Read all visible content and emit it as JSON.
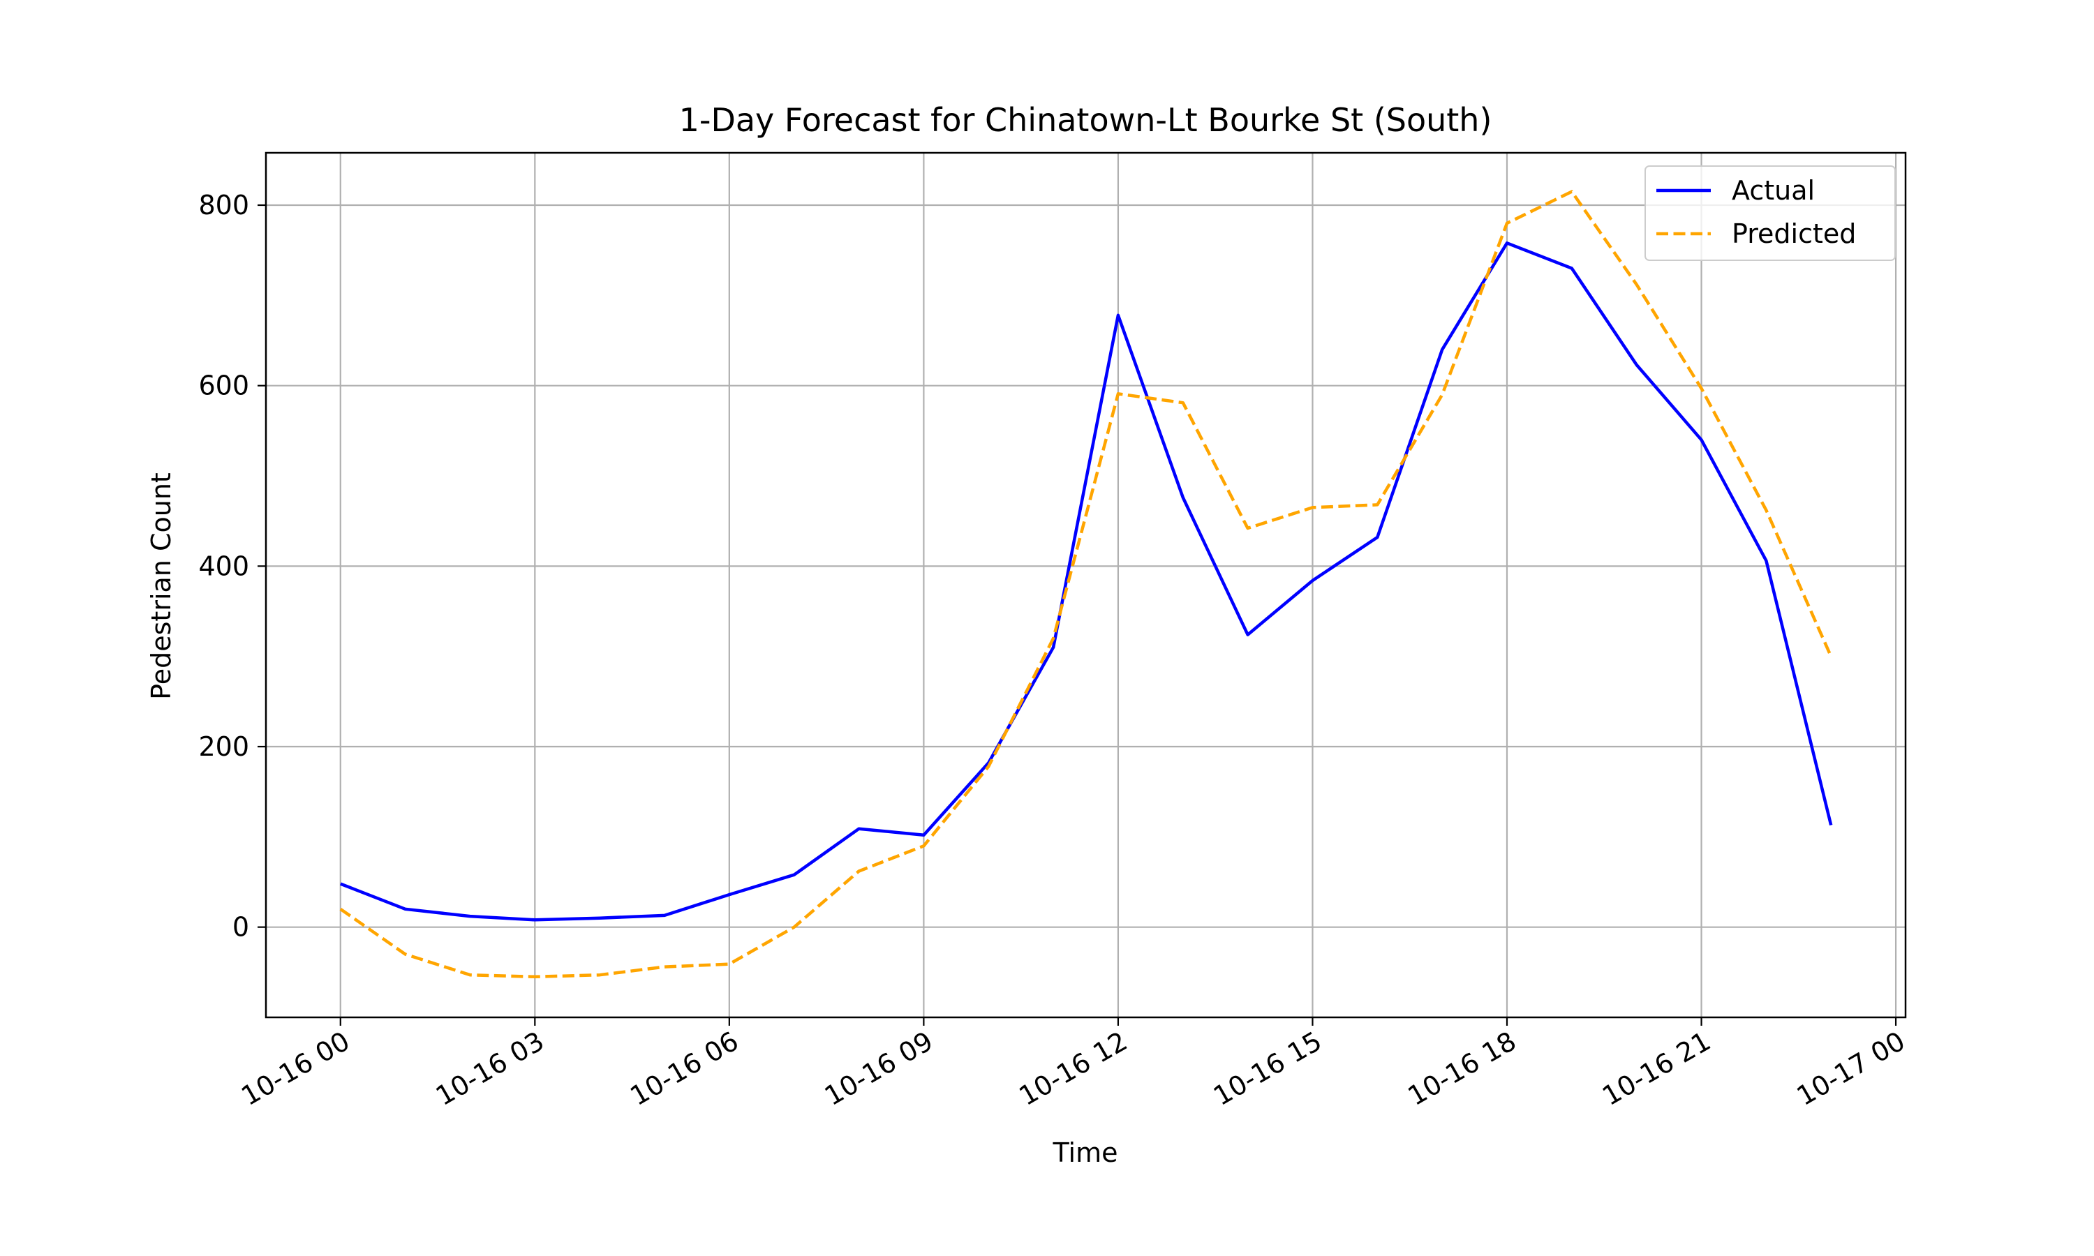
{
  "chart_data": {
    "type": "line",
    "title": "1-Day Forecast for Chinatown-Lt Bourke St (South)",
    "xlabel": "Time",
    "ylabel": "Pedestrian Count",
    "x": [
      "10-16 00",
      "10-16 01",
      "10-16 02",
      "10-16 03",
      "10-16 04",
      "10-16 05",
      "10-16 06",
      "10-16 07",
      "10-16 08",
      "10-16 09",
      "10-16 10",
      "10-16 11",
      "10-16 12",
      "10-16 13",
      "10-16 14",
      "10-16 15",
      "10-16 16",
      "10-16 17",
      "10-16 18",
      "10-16 19",
      "10-16 20",
      "10-16 21",
      "10-16 22",
      "10-16 23"
    ],
    "x_hours": [
      0,
      1,
      2,
      3,
      4,
      5,
      6,
      7,
      8,
      9,
      10,
      11,
      12,
      13,
      14,
      15,
      16,
      17,
      18,
      19,
      20,
      21,
      22,
      23
    ],
    "xlim_hours": [
      -1.15,
      24.15
    ],
    "xticks_hours": [
      0,
      3,
      6,
      9,
      12,
      15,
      18,
      21,
      24
    ],
    "xtick_labels": [
      "10-16 00",
      "10-16 03",
      "10-16 06",
      "10-16 09",
      "10-16 12",
      "10-16 15",
      "10-16 18",
      "10-16 21",
      "10-17 00"
    ],
    "ylim": [
      -100,
      858
    ],
    "yticks": [
      0,
      200,
      400,
      600,
      800
    ],
    "ytick_labels": [
      "0",
      "200",
      "400",
      "600",
      "800"
    ],
    "grid": true,
    "legend_position": "upper right",
    "series": [
      {
        "name": "Actual",
        "color": "#0000ff",
        "style": "solid",
        "values": [
          48,
          20,
          12,
          8,
          10,
          13,
          36,
          58,
          109,
          102,
          182,
          310,
          678,
          476,
          324,
          384,
          432,
          640,
          758,
          730,
          623,
          540,
          406,
          113
        ]
      },
      {
        "name": "Predicted",
        "color": "#ffa500",
        "style": "dashed",
        "values": [
          20,
          -30,
          -53,
          -55,
          -53,
          -44,
          -41,
          0,
          62,
          90,
          178,
          320,
          591,
          581,
          442,
          465,
          468,
          590,
          780,
          815,
          712,
          597,
          462,
          300
        ]
      }
    ]
  }
}
